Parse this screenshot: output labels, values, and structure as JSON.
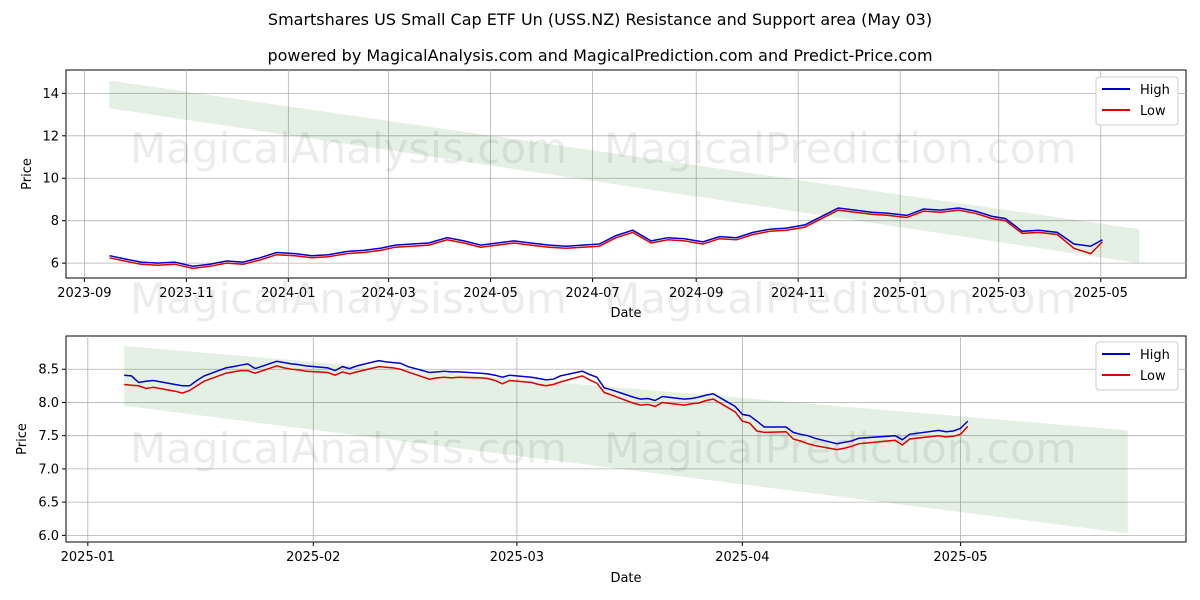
{
  "title": "Smartshares US Small Cap ETF Un (USS.NZ) Resistance and Support area (May 03)",
  "subtitle": "powered by MagicalAnalysis.com and MagicalPrediction.com and Predict-Price.com",
  "watermarks": [
    "MagicalAnalysis.com",
    "MagicalPrediction.com"
  ],
  "colors": {
    "high": "#0000cc",
    "low": "#dd0000",
    "band": "#2e8b2e"
  },
  "chart_data": [
    {
      "type": "line",
      "xlabel": "Date",
      "ylabel": "Price",
      "xlim": [
        "2023-08-21",
        "2025-06-21"
      ],
      "ylim": [
        5.3,
        15.1
      ],
      "xticks": [
        "2023-09-01",
        "2023-11-01",
        "2024-01-01",
        "2024-03-01",
        "2024-05-01",
        "2024-07-01",
        "2024-09-01",
        "2024-11-01",
        "2025-01-01",
        "2025-03-01",
        "2025-05-01"
      ],
      "xtick_labels": [
        "2023-09",
        "2023-11",
        "2024-01",
        "2024-03",
        "2024-05",
        "2024-07",
        "2024-09",
        "2024-11",
        "2025-01",
        "2025-03",
        "2025-05"
      ],
      "yticks": [
        6,
        8,
        10,
        12,
        14
      ],
      "grid": true,
      "legend": "top-right",
      "band": {
        "x": [
          "2023-09-16",
          "2025-05-24"
        ],
        "upper": [
          14.6,
          7.6
        ],
        "lower": [
          13.3,
          6.0
        ]
      },
      "series": [
        {
          "name": "High",
          "x": [
            "2023-09-16",
            "2023-09-25",
            "2023-10-05",
            "2023-10-15",
            "2023-10-25",
            "2023-11-05",
            "2023-11-15",
            "2023-11-25",
            "2023-12-05",
            "2023-12-15",
            "2023-12-25",
            "2024-01-05",
            "2024-01-15",
            "2024-01-25",
            "2024-02-05",
            "2024-02-15",
            "2024-02-25",
            "2024-03-05",
            "2024-03-15",
            "2024-03-25",
            "2024-04-05",
            "2024-04-15",
            "2024-04-25",
            "2024-05-05",
            "2024-05-15",
            "2024-05-25",
            "2024-06-05",
            "2024-06-15",
            "2024-06-25",
            "2024-07-05",
            "2024-07-15",
            "2024-07-25",
            "2024-08-05",
            "2024-08-15",
            "2024-08-25",
            "2024-09-05",
            "2024-09-15",
            "2024-09-25",
            "2024-10-05",
            "2024-10-15",
            "2024-10-25",
            "2024-11-05",
            "2024-11-15",
            "2024-11-25",
            "2024-12-05",
            "2024-12-15",
            "2024-12-25",
            "2025-01-05",
            "2025-01-15",
            "2025-01-25",
            "2025-02-05",
            "2025-02-15",
            "2025-02-25",
            "2025-03-05",
            "2025-03-15",
            "2025-03-25",
            "2025-04-05",
            "2025-04-15",
            "2025-04-25",
            "2025-05-02"
          ],
          "values": [
            6.35,
            6.2,
            6.05,
            6.0,
            6.05,
            5.85,
            5.95,
            6.1,
            6.05,
            6.25,
            6.5,
            6.45,
            6.35,
            6.4,
            6.55,
            6.6,
            6.7,
            6.85,
            6.9,
            6.95,
            7.2,
            7.05,
            6.85,
            6.95,
            7.05,
            6.95,
            6.85,
            6.8,
            6.85,
            6.9,
            7.3,
            7.55,
            7.05,
            7.2,
            7.15,
            7.0,
            7.25,
            7.2,
            7.45,
            7.6,
            7.65,
            7.8,
            8.2,
            8.6,
            8.5,
            8.4,
            8.35,
            8.25,
            8.55,
            8.5,
            8.6,
            8.45,
            8.2,
            8.1,
            7.5,
            7.55,
            7.45,
            6.9,
            6.8,
            7.1
          ]
        },
        {
          "name": "Low",
          "x": [
            "2023-09-16",
            "2023-09-25",
            "2023-10-05",
            "2023-10-15",
            "2023-10-25",
            "2023-11-05",
            "2023-11-15",
            "2023-11-25",
            "2023-12-05",
            "2023-12-15",
            "2023-12-25",
            "2024-01-05",
            "2024-01-15",
            "2024-01-25",
            "2024-02-05",
            "2024-02-15",
            "2024-02-25",
            "2024-03-05",
            "2024-03-15",
            "2024-03-25",
            "2024-04-05",
            "2024-04-15",
            "2024-04-25",
            "2024-05-05",
            "2024-05-15",
            "2024-05-25",
            "2024-06-05",
            "2024-06-15",
            "2024-06-25",
            "2024-07-05",
            "2024-07-15",
            "2024-07-25",
            "2024-08-05",
            "2024-08-15",
            "2024-08-25",
            "2024-09-05",
            "2024-09-15",
            "2024-09-25",
            "2024-10-05",
            "2024-10-15",
            "2024-10-25",
            "2024-11-05",
            "2024-11-15",
            "2024-11-25",
            "2024-12-05",
            "2024-12-15",
            "2024-12-25",
            "2025-01-05",
            "2025-01-15",
            "2025-01-25",
            "2025-02-05",
            "2025-02-15",
            "2025-02-25",
            "2025-03-05",
            "2025-03-15",
            "2025-03-25",
            "2025-04-05",
            "2025-04-15",
            "2025-04-25",
            "2025-05-02"
          ],
          "values": [
            6.25,
            6.1,
            5.95,
            5.9,
            5.95,
            5.75,
            5.85,
            6.0,
            5.95,
            6.15,
            6.4,
            6.35,
            6.25,
            6.3,
            6.45,
            6.5,
            6.6,
            6.75,
            6.8,
            6.85,
            7.1,
            6.95,
            6.75,
            6.85,
            6.95,
            6.85,
            6.75,
            6.7,
            6.75,
            6.8,
            7.2,
            7.45,
            6.95,
            7.1,
            7.05,
            6.9,
            7.15,
            7.1,
            7.35,
            7.5,
            7.55,
            7.7,
            8.1,
            8.5,
            8.4,
            8.3,
            8.25,
            8.15,
            8.45,
            8.4,
            8.5,
            8.35,
            8.1,
            8.0,
            7.4,
            7.45,
            7.35,
            6.7,
            6.45,
            7.0
          ]
        }
      ]
    },
    {
      "type": "line",
      "xlabel": "Date",
      "ylabel": "Price",
      "xlim": [
        "2024-12-29",
        "2025-06-01"
      ],
      "ylim": [
        5.9,
        9.0
      ],
      "xticks": [
        "2025-01-01",
        "2025-02-01",
        "2025-03-01",
        "2025-04-01",
        "2025-05-01"
      ],
      "xtick_labels": [
        "2025-01",
        "2025-02",
        "2025-03",
        "2025-04",
        "2025-05"
      ],
      "yticks": [
        6.0,
        6.5,
        7.0,
        7.5,
        8.0,
        8.5
      ],
      "ytick_labels": [
        "6.0",
        "6.5",
        "7.0",
        "7.5",
        "8.0",
        "8.5"
      ],
      "grid": true,
      "legend": "top-right",
      "band": {
        "x": [
          "2025-01-06",
          "2025-05-24"
        ],
        "upper": [
          8.85,
          7.58
        ],
        "lower": [
          7.95,
          6.03
        ]
      },
      "series": [
        {
          "name": "High",
          "x": [
            "2025-01-06",
            "2025-01-07",
            "2025-01-08",
            "2025-01-09",
            "2025-01-10",
            "2025-01-13",
            "2025-01-14",
            "2025-01-15",
            "2025-01-16",
            "2025-01-17",
            "2025-01-20",
            "2025-01-21",
            "2025-01-22",
            "2025-01-23",
            "2025-01-24",
            "2025-01-27",
            "2025-01-28",
            "2025-01-29",
            "2025-01-30",
            "2025-01-31",
            "2025-02-03",
            "2025-02-04",
            "2025-02-05",
            "2025-02-06",
            "2025-02-07",
            "2025-02-10",
            "2025-02-11",
            "2025-02-12",
            "2025-02-13",
            "2025-02-14",
            "2025-02-17",
            "2025-02-18",
            "2025-02-19",
            "2025-02-20",
            "2025-02-21",
            "2025-02-24",
            "2025-02-25",
            "2025-02-26",
            "2025-02-27",
            "2025-02-28",
            "2025-03-03",
            "2025-03-04",
            "2025-03-05",
            "2025-03-06",
            "2025-03-07",
            "2025-03-10",
            "2025-03-11",
            "2025-03-12",
            "2025-03-13",
            "2025-03-14",
            "2025-03-17",
            "2025-03-18",
            "2025-03-19",
            "2025-03-20",
            "2025-03-21",
            "2025-03-24",
            "2025-03-25",
            "2025-03-26",
            "2025-03-27",
            "2025-03-28",
            "2025-03-31",
            "2025-04-01",
            "2025-04-02",
            "2025-04-03",
            "2025-04-04",
            "2025-04-07",
            "2025-04-08",
            "2025-04-09",
            "2025-04-10",
            "2025-04-11",
            "2025-04-14",
            "2025-04-15",
            "2025-04-16",
            "2025-04-17",
            "2025-04-22",
            "2025-04-23",
            "2025-04-24",
            "2025-04-28",
            "2025-04-29",
            "2025-04-30",
            "2025-05-01",
            "2025-05-02"
          ],
          "values": [
            8.41,
            8.4,
            8.3,
            8.32,
            8.33,
            8.27,
            8.25,
            8.25,
            8.33,
            8.4,
            8.52,
            8.54,
            8.56,
            8.58,
            8.51,
            8.62,
            8.6,
            8.58,
            8.57,
            8.55,
            8.52,
            8.48,
            8.54,
            8.51,
            8.55,
            8.63,
            8.61,
            8.6,
            8.59,
            8.54,
            8.45,
            8.46,
            8.47,
            8.46,
            8.46,
            8.44,
            8.43,
            8.41,
            8.38,
            8.41,
            8.38,
            8.36,
            8.34,
            8.35,
            8.4,
            8.47,
            8.42,
            8.38,
            8.22,
            8.19,
            8.08,
            8.05,
            8.06,
            8.03,
            8.09,
            8.05,
            8.06,
            8.08,
            8.11,
            8.13,
            7.94,
            7.82,
            7.8,
            7.72,
            7.63,
            7.63,
            7.55,
            7.52,
            7.5,
            7.46,
            7.38,
            7.4,
            7.42,
            7.46,
            7.5,
            7.44,
            7.52,
            7.58,
            7.56,
            7.57,
            7.61,
            7.72
          ]
        },
        {
          "name": "Low",
          "x": [
            "2025-01-06",
            "2025-01-07",
            "2025-01-08",
            "2025-01-09",
            "2025-01-10",
            "2025-01-13",
            "2025-01-14",
            "2025-01-15",
            "2025-01-16",
            "2025-01-17",
            "2025-01-20",
            "2025-01-21",
            "2025-01-22",
            "2025-01-23",
            "2025-01-24",
            "2025-01-27",
            "2025-01-28",
            "2025-01-29",
            "2025-01-30",
            "2025-01-31",
            "2025-02-03",
            "2025-02-04",
            "2025-02-05",
            "2025-02-06",
            "2025-02-07",
            "2025-02-10",
            "2025-02-11",
            "2025-02-12",
            "2025-02-13",
            "2025-02-14",
            "2025-02-17",
            "2025-02-18",
            "2025-02-19",
            "2025-02-20",
            "2025-02-21",
            "2025-02-24",
            "2025-02-25",
            "2025-02-26",
            "2025-02-27",
            "2025-02-28",
            "2025-03-03",
            "2025-03-04",
            "2025-03-05",
            "2025-03-06",
            "2025-03-07",
            "2025-03-10",
            "2025-03-11",
            "2025-03-12",
            "2025-03-13",
            "2025-03-14",
            "2025-03-17",
            "2025-03-18",
            "2025-03-19",
            "2025-03-20",
            "2025-03-21",
            "2025-03-24",
            "2025-03-25",
            "2025-03-26",
            "2025-03-27",
            "2025-03-28",
            "2025-03-31",
            "2025-04-01",
            "2025-04-02",
            "2025-04-03",
            "2025-04-04",
            "2025-04-07",
            "2025-04-08",
            "2025-04-09",
            "2025-04-10",
            "2025-04-11",
            "2025-04-14",
            "2025-04-15",
            "2025-04-16",
            "2025-04-17",
            "2025-04-22",
            "2025-04-23",
            "2025-04-24",
            "2025-04-28",
            "2025-04-29",
            "2025-04-30",
            "2025-05-01",
            "2025-05-02"
          ],
          "values": [
            8.27,
            8.26,
            8.25,
            8.21,
            8.23,
            8.17,
            8.14,
            8.18,
            8.25,
            8.32,
            8.44,
            8.46,
            8.48,
            8.48,
            8.44,
            8.55,
            8.52,
            8.5,
            8.49,
            8.47,
            8.45,
            8.41,
            8.46,
            8.43,
            8.46,
            8.54,
            8.53,
            8.52,
            8.5,
            8.46,
            8.35,
            8.37,
            8.38,
            8.37,
            8.38,
            8.37,
            8.36,
            8.33,
            8.28,
            8.33,
            8.3,
            8.27,
            8.25,
            8.27,
            8.31,
            8.4,
            8.34,
            8.29,
            8.15,
            8.11,
            7.99,
            7.96,
            7.97,
            7.94,
            8.0,
            7.96,
            7.98,
            7.99,
            8.03,
            8.05,
            7.86,
            7.72,
            7.69,
            7.57,
            7.55,
            7.56,
            7.45,
            7.42,
            7.38,
            7.35,
            7.29,
            7.31,
            7.34,
            7.38,
            7.43,
            7.36,
            7.45,
            7.5,
            7.48,
            7.49,
            7.52,
            7.64
          ]
        }
      ]
    }
  ]
}
